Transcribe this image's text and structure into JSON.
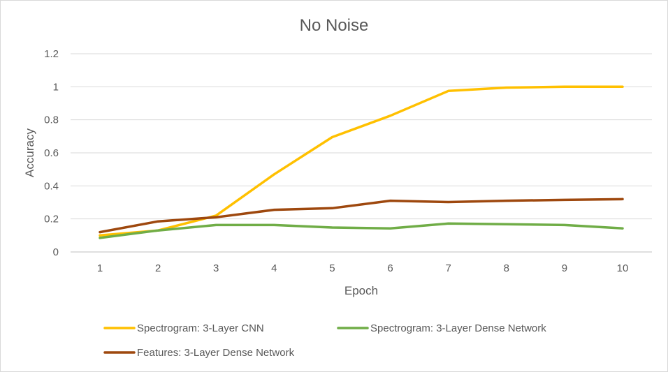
{
  "chart_data": {
    "type": "line",
    "title": "No Noise",
    "xlabel": "Epoch",
    "ylabel": "Accuracy",
    "x": [
      1,
      2,
      3,
      4,
      5,
      6,
      7,
      8,
      9,
      10
    ],
    "ylim": [
      0,
      1.2
    ],
    "yticks": [
      "0",
      "0.2",
      "0.4",
      "0.6",
      "0.8",
      "1",
      "1.2"
    ],
    "grid": true,
    "legend_position": "bottom",
    "series": [
      {
        "name": "Spectrogram: 3-Layer CNN",
        "color": "#ffc000",
        "values": [
          0.1,
          0.13,
          0.22,
          0.47,
          0.695,
          0.825,
          0.975,
          0.995,
          1.0,
          1.0
        ]
      },
      {
        "name": "Spectrogram: 3-Layer Dense Network",
        "color": "#70ad47",
        "values": [
          0.085,
          0.13,
          0.163,
          0.163,
          0.148,
          0.143,
          0.172,
          0.168,
          0.163,
          0.143
        ]
      },
      {
        "name": "Features: 3-Layer Dense Network",
        "color": "#9e480e",
        "values": [
          0.12,
          0.185,
          0.21,
          0.255,
          0.265,
          0.31,
          0.302,
          0.31,
          0.315,
          0.32
        ]
      }
    ]
  }
}
